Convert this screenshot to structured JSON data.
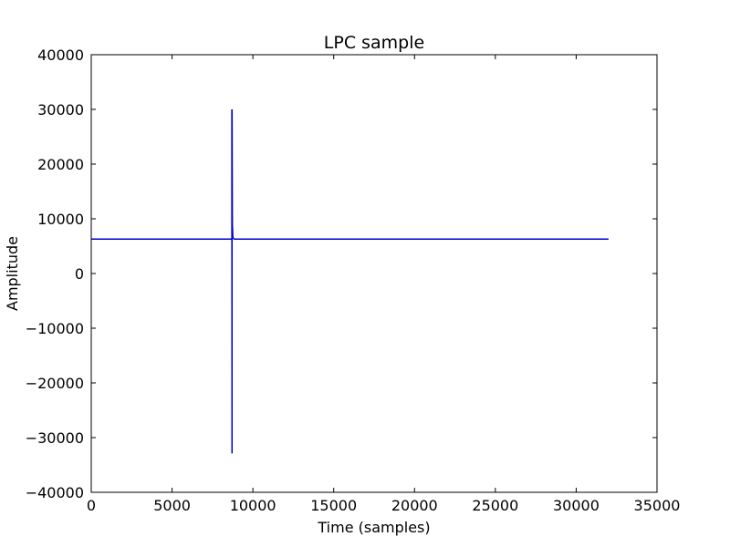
{
  "chart_data": {
    "type": "line",
    "title": "LPC sample",
    "xlabel": "Time (samples)",
    "ylabel": "Amplitude",
    "xlim": [
      0,
      35000
    ],
    "ylim": [
      -40000,
      40000
    ],
    "xticks": [
      0,
      5000,
      10000,
      15000,
      20000,
      25000,
      30000,
      35000
    ],
    "xtick_labels": [
      "0",
      "5000",
      "10000",
      "15000",
      "20000",
      "25000",
      "30000",
      "35000"
    ],
    "yticks": [
      40000,
      30000,
      20000,
      10000,
      0,
      -10000,
      -20000,
      -30000,
      -40000
    ],
    "ytick_labels": [
      "40000",
      "30000",
      "20000",
      "10000",
      "0",
      "−10000",
      "−20000",
      "−30000",
      "−40000"
    ],
    "grid": false,
    "series": [
      {
        "color": "#0000cc",
        "x": [
          0,
          8700,
          8700,
          8710,
          8710,
          8730,
          8760,
          8800,
          8850,
          8900,
          32000
        ],
        "y": [
          6300,
          6300,
          30000,
          -32900,
          30000,
          9000,
          6600,
          6400,
          6300,
          6300,
          6300
        ]
      }
    ]
  }
}
